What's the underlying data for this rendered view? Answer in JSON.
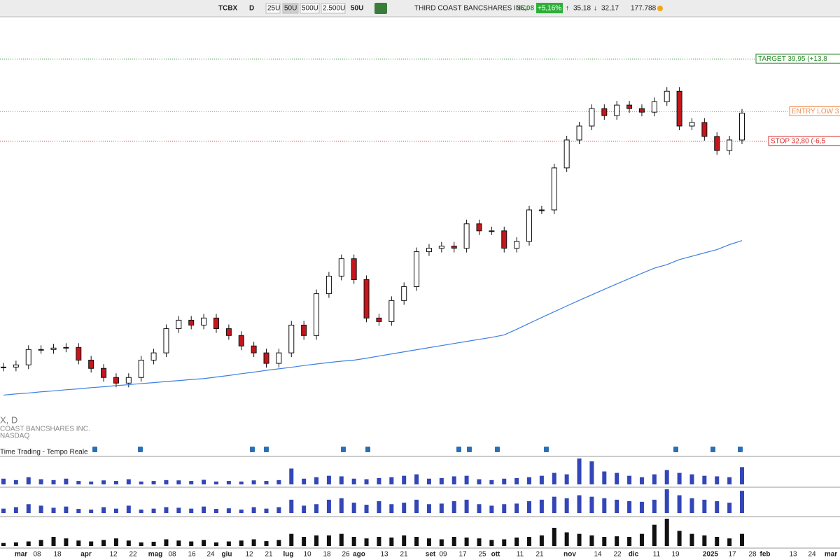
{
  "toolbar": {
    "symbol": "TCBX",
    "interval": "D",
    "sizes": [
      "25U",
      "50U",
      "500U",
      "2.500U"
    ],
    "active_size": "50U",
    "company": "THIRD COAST BANCSHARES INC.",
    "last": "35,08",
    "change": "+5,16%",
    "high": "35,18",
    "low": "32,17",
    "volume": "177.788"
  },
  "panel_labels": {
    "symbol_line": "X, D",
    "company": "COAST BANCSHARES INC.",
    "exchange": "NASDAQ",
    "feed": "Time Trading - Tempo Reale"
  },
  "chart_data": {
    "type": "candlestick",
    "log_scale": true,
    "ylim": [
      17.1,
      44.2
    ],
    "series": [
      {
        "name": "price",
        "values": [
          19.09,
          19.19,
          19.91,
          19.91,
          19.98,
          20.01,
          19.41,
          19.03,
          18.62,
          18.37,
          18.62,
          19.41,
          19.75,
          20.93,
          21.36,
          21.11,
          21.47,
          20.93,
          20.59,
          20.08,
          19.75,
          19.26,
          19.75,
          21.11,
          20.59,
          22.76,
          23.74,
          24.75,
          23.54,
          21.47,
          21.29,
          22.39,
          23.15,
          25.17,
          25.38,
          25.51,
          25.38,
          26.91,
          26.46,
          26.46,
          25.38,
          25.8,
          27.82,
          27.82,
          30.77,
          32.9,
          34.02,
          35.47,
          34.88,
          35.77,
          35.47,
          35.17,
          36.06,
          36.98,
          34.02,
          34.31,
          33.18,
          32.08,
          32.9,
          35.08
        ]
      },
      {
        "name": "ma200",
        "color": "#3d7fe0",
        "values": [
          17.85,
          17.9,
          17.94,
          17.99,
          18.03,
          18.08,
          18.12,
          18.17,
          18.21,
          18.26,
          18.3,
          18.35,
          18.39,
          18.44,
          18.48,
          18.53,
          18.57,
          18.64,
          18.71,
          18.79,
          18.86,
          18.94,
          19.01,
          19.08,
          19.16,
          19.23,
          19.3,
          19.36,
          19.41,
          19.5,
          19.6,
          19.7,
          19.8,
          19.9,
          20.0,
          20.1,
          20.2,
          20.3,
          20.4,
          20.5,
          20.62,
          20.9,
          21.2,
          21.5,
          21.8,
          22.1,
          22.4,
          22.7,
          23.0,
          23.3,
          23.6,
          23.9,
          24.2,
          24.4,
          24.7,
          24.9,
          25.1,
          25.3,
          25.6,
          25.85
        ]
      }
    ],
    "levels": [
      {
        "label": "TARGET 39,95 (+13,8",
        "value": 39.95,
        "color": "#2a8a2a"
      },
      {
        "label": "ENTRY LOW 3",
        "value": 35.22,
        "color": "#f08a4b"
      },
      {
        "label": "STOP 32,80 (-6,5",
        "value": 32.8,
        "color": "#d92b2b"
      }
    ],
    "volume_panels": [
      {
        "color": "#3346b8",
        "values": [
          20,
          15,
          25,
          18,
          15,
          20,
          12,
          10,
          14,
          12,
          18,
          10,
          12,
          15,
          14,
          12,
          16,
          10,
          12,
          10,
          14,
          12,
          15,
          55,
          20,
          25,
          30,
          28,
          20,
          18,
          22,
          25,
          30,
          35,
          20,
          22,
          28,
          30,
          18,
          15,
          20,
          22,
          25,
          30,
          40,
          35,
          90,
          80,
          45,
          40,
          30,
          25,
          35,
          50,
          40,
          35,
          30,
          28,
          25,
          60
        ]
      },
      {
        "color": "#3346b8",
        "values": [
          15,
          20,
          30,
          25,
          18,
          22,
          14,
          12,
          20,
          15,
          25,
          12,
          15,
          20,
          18,
          15,
          22,
          14,
          16,
          12,
          20,
          15,
          20,
          45,
          25,
          30,
          45,
          50,
          35,
          28,
          40,
          30,
          35,
          45,
          30,
          32,
          40,
          45,
          30,
          25,
          30,
          32,
          40,
          45,
          55,
          50,
          60,
          55,
          50,
          45,
          40,
          38,
          45,
          80,
          60,
          50,
          45,
          40,
          35,
          75
        ]
      },
      {
        "color": "#111111",
        "values": [
          10,
          12,
          15,
          20,
          30,
          25,
          18,
          15,
          20,
          25,
          18,
          12,
          14,
          22,
          18,
          15,
          20,
          12,
          15,
          18,
          22,
          16,
          20,
          40,
          30,
          35,
          35,
          40,
          30,
          25,
          30,
          28,
          35,
          30,
          25,
          22,
          30,
          28,
          25,
          20,
          22,
          28,
          30,
          35,
          60,
          45,
          40,
          35,
          30,
          32,
          30,
          40,
          70,
          90,
          50,
          40,
          35,
          30,
          25,
          40
        ]
      }
    ],
    "x_labels": [
      "mar",
      "08",
      "18",
      "apr",
      "12",
      "22",
      "mag",
      "08",
      "16",
      "24",
      "giu",
      "12",
      "21",
      "lug",
      "10",
      "18",
      "26",
      "ago",
      "13",
      "21",
      "set",
      "09",
      "17",
      "25",
      "ott",
      "11",
      "21",
      "nov",
      "14",
      "22",
      "dic",
      "11",
      "19",
      "2025",
      "17",
      "28",
      "feb",
      "13",
      "24",
      "mar"
    ]
  }
}
